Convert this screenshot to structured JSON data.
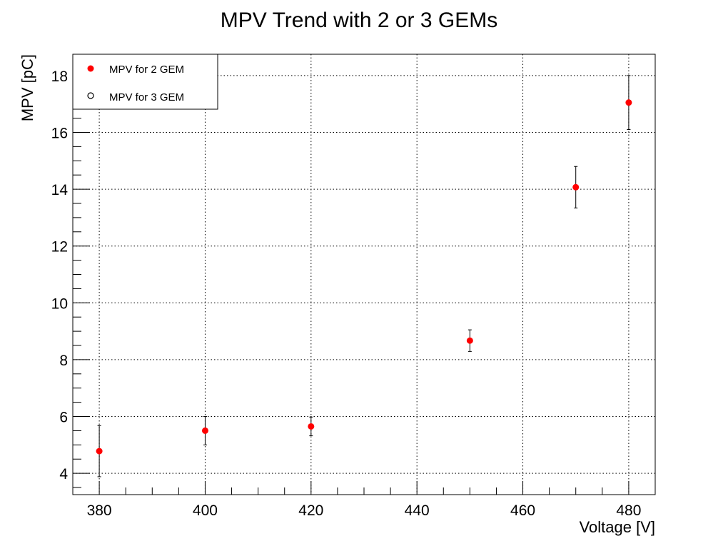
{
  "chart_data": {
    "type": "scatter",
    "title": "MPV Trend with 2 or 3 GEMs",
    "xlabel": "Voltage [V]",
    "ylabel": "MPV [pC]",
    "xlim": [
      375,
      485
    ],
    "ylim": [
      3.25,
      18.75
    ],
    "x_ticks": [
      380,
      400,
      420,
      440,
      460,
      480
    ],
    "y_ticks": [
      4,
      6,
      8,
      10,
      12,
      14,
      16,
      18
    ],
    "grid": true,
    "legend_position": "top-left",
    "series": [
      {
        "name": "MPV for 2 GEM",
        "marker": "filled-circle",
        "color": "#ff0000",
        "x": [
          380,
          400,
          420,
          450,
          470,
          480
        ],
        "y": [
          4.78,
          5.5,
          5.65,
          8.67,
          14.07,
          17.05
        ],
        "yerr": [
          0.9,
          0.5,
          0.33,
          0.38,
          0.73,
          0.95
        ]
      },
      {
        "name": "MPV for 3 GEM",
        "marker": "open-circle",
        "color": "#000000",
        "x": [],
        "y": [],
        "yerr": []
      }
    ]
  }
}
